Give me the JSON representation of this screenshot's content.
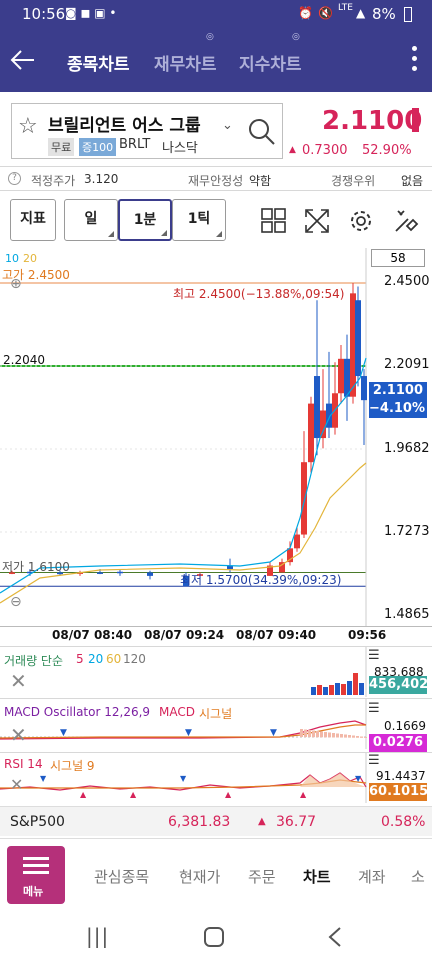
{
  "status": {
    "time": "10:56",
    "signal": "LTE",
    "battery": "8%"
  },
  "nav": {
    "tabs": [
      {
        "label": "종목차트",
        "active": true
      },
      {
        "label": "재무차트",
        "active": false
      },
      {
        "label": "지수차트",
        "active": false
      }
    ]
  },
  "stock": {
    "name": "브릴리언트 어스 그룹",
    "tag_free": "무료",
    "tag_margin": "증100",
    "ticker": "BRLT",
    "market": "나스닥",
    "price": "2.1100",
    "change": "0.7300",
    "change_pct": "52.90%",
    "up_color": "#d6245a"
  },
  "info": {
    "fair_price_label": "적정주가",
    "fair_price": "3.120",
    "stability_label": "재무안정성",
    "stability": "약함",
    "competition_label": "경쟁우위",
    "competition": "없음"
  },
  "toolbar": {
    "indicator": "지표",
    "period_day": "일",
    "period_min": "1분",
    "period_tick": "1틱",
    "count": "58"
  },
  "chart": {
    "ma_10": "10",
    "ma_20": "20",
    "high_left": "고가 2.4500",
    "low_left": "저가 1.6100",
    "y_ticks": [
      "2.4500",
      "2.2091",
      "1.9682",
      "1.7273",
      "1.4865"
    ],
    "line_label_left": "2.2040",
    "high_annotation": "최고 2.4500(−13.88%,09:54)",
    "low_annotation": "최저 1.5700(34.39%,09:23)",
    "current_price": "2.1100",
    "current_pct": "−4.10%",
    "x_ticks": [
      "08/07 08:40",
      "08/07 09:24",
      "08/07 09:40",
      "09:56"
    ],
    "ma10_color": "#00a7e1",
    "ma20_color": "#e3b53a",
    "up_candle": "#e53935",
    "down_candle": "#1e5bc6"
  },
  "volume": {
    "title": "거래량 단순",
    "ma5": "5",
    "ma20": "20",
    "ma60": "60",
    "ma120": "120",
    "max_value": "833,688",
    "current": "456,402",
    "badge_color": "#3aa89f"
  },
  "macd": {
    "title": "MACD Oscillator 12,26,9",
    "macd_label": "MACD",
    "signal_label": "시그널",
    "top_value": "0.1669",
    "current": "0.0276",
    "badge_color": "#d62ad6"
  },
  "rsi": {
    "title": "RSI 14",
    "signal_label": "시그널 9",
    "top_value": "91.4437",
    "current": "60.1015",
    "badge_color": "#e07a20"
  },
  "index": {
    "name": "S&P500",
    "value": "6,381.83",
    "change": "36.77",
    "pct": "0.58%"
  },
  "bottom_nav": {
    "menu": "메뉴",
    "items": [
      {
        "label": "관심종목",
        "active": false
      },
      {
        "label": "현재가",
        "active": false
      },
      {
        "label": "주문",
        "active": false
      },
      {
        "label": "차트",
        "active": true
      },
      {
        "label": "계좌",
        "active": false
      },
      {
        "label": "소",
        "active": false
      }
    ]
  }
}
